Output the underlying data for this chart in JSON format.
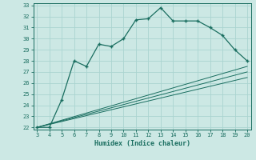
{
  "xlabel": "Humidex (Indice chaleur)",
  "xlim": [
    3,
    20
  ],
  "ylim": [
    22,
    33
  ],
  "xticks": [
    3,
    4,
    5,
    6,
    7,
    8,
    9,
    10,
    11,
    12,
    13,
    14,
    15,
    16,
    17,
    18,
    19,
    20
  ],
  "yticks": [
    22,
    23,
    24,
    25,
    26,
    27,
    28,
    29,
    30,
    31,
    32,
    33
  ],
  "bg_color": "#cce8e4",
  "grid_color": "#aad4d0",
  "line_color": "#1a6e60",
  "main_x": [
    3,
    4,
    5,
    6,
    7,
    8,
    9,
    10,
    11,
    12,
    13,
    14,
    15,
    16,
    17,
    18,
    19,
    20
  ],
  "main_y": [
    22.0,
    22.0,
    24.5,
    28.0,
    27.5,
    29.5,
    29.3,
    30.0,
    31.7,
    31.8,
    32.8,
    31.6,
    31.6,
    31.6,
    31.0,
    30.3,
    29.0,
    28.0
  ],
  "ref_lines": [
    {
      "x": [
        3,
        20
      ],
      "y": [
        22.0,
        27.5
      ]
    },
    {
      "x": [
        3,
        20
      ],
      "y": [
        22.0,
        27.0
      ]
    },
    {
      "x": [
        3,
        20
      ],
      "y": [
        22.0,
        26.5
      ]
    }
  ]
}
